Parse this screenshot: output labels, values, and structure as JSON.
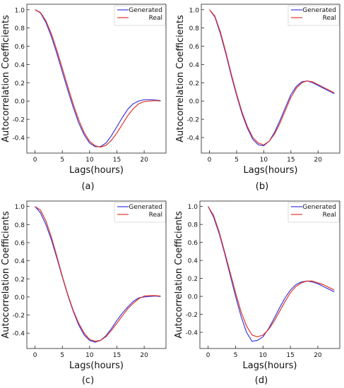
{
  "chart_data": [
    {
      "type": "line",
      "panel_label": "(a)",
      "xlabel": "Lags(hours)",
      "ylabel": "Autocorrelation Coefficients",
      "xlim": [
        -1.5,
        24
      ],
      "ylim": [
        -0.57,
        1.06
      ],
      "xticks": [
        0,
        5,
        10,
        15,
        20
      ],
      "yticks": [
        1.0,
        0.8,
        0.6,
        0.4,
        0.2,
        0.0,
        -0.2,
        -0.4
      ],
      "legend_position": "top-right",
      "x": [
        0,
        1,
        2,
        3,
        4,
        5,
        6,
        7,
        8,
        9,
        10,
        11,
        12,
        13,
        14,
        15,
        16,
        17,
        18,
        19,
        20,
        21,
        22,
        23
      ],
      "series": [
        {
          "name": "Generated",
          "color": "#3a3adf",
          "values": [
            1.0,
            0.965,
            0.86,
            0.705,
            0.52,
            0.32,
            0.12,
            -0.07,
            -0.24,
            -0.37,
            -0.46,
            -0.5,
            -0.5,
            -0.46,
            -0.38,
            -0.28,
            -0.18,
            -0.09,
            -0.03,
            0.0,
            0.015,
            0.015,
            0.01,
            0.005
          ]
        },
        {
          "name": "Real",
          "color": "#e0362a",
          "values": [
            1.0,
            0.97,
            0.88,
            0.735,
            0.555,
            0.36,
            0.16,
            -0.035,
            -0.205,
            -0.345,
            -0.44,
            -0.49,
            -0.505,
            -0.485,
            -0.43,
            -0.35,
            -0.255,
            -0.16,
            -0.085,
            -0.03,
            -0.005,
            0.0,
            0.005,
            0.0
          ]
        }
      ]
    },
    {
      "type": "line",
      "panel_label": "(b)",
      "xlabel": "Lags(hours)",
      "ylabel": "Autocorrelation Coefficients",
      "xlim": [
        -1.5,
        24
      ],
      "ylim": [
        -0.57,
        1.06
      ],
      "xticks": [
        0,
        5,
        10,
        15,
        20
      ],
      "yticks": [
        1.0,
        0.8,
        0.6,
        0.4,
        0.2,
        0.0,
        -0.2,
        -0.4
      ],
      "legend_position": "top-right",
      "x": [
        0,
        1,
        2,
        3,
        4,
        5,
        6,
        7,
        8,
        9,
        10,
        11,
        12,
        13,
        14,
        15,
        16,
        17,
        18,
        19,
        20,
        21,
        22,
        23
      ],
      "series": [
        {
          "name": "Generated",
          "color": "#3a3adf",
          "values": [
            1.0,
            0.92,
            0.74,
            0.52,
            0.28,
            0.06,
            -0.14,
            -0.3,
            -0.42,
            -0.48,
            -0.49,
            -0.44,
            -0.34,
            -0.21,
            -0.07,
            0.07,
            0.16,
            0.21,
            0.22,
            0.2,
            0.17,
            0.14,
            0.11,
            0.08
          ]
        },
        {
          "name": "Real",
          "color": "#e0362a",
          "values": [
            1.0,
            0.93,
            0.76,
            0.54,
            0.3,
            0.08,
            -0.12,
            -0.28,
            -0.4,
            -0.46,
            -0.48,
            -0.44,
            -0.36,
            -0.24,
            -0.1,
            0.04,
            0.14,
            0.2,
            0.22,
            0.21,
            0.18,
            0.15,
            0.12,
            0.09
          ]
        }
      ]
    },
    {
      "type": "line",
      "panel_label": "(c)",
      "xlabel": "Lags(hours)",
      "ylabel": "Autocorrelation Coefficients",
      "xlim": [
        -1.5,
        24
      ],
      "ylim": [
        -0.57,
        1.06
      ],
      "xticks": [
        0,
        5,
        10,
        15,
        20
      ],
      "yticks": [
        1.0,
        0.8,
        0.6,
        0.4,
        0.2,
        0.0,
        -0.2,
        -0.4
      ],
      "legend_position": "top-right",
      "x": [
        0,
        1,
        2,
        3,
        4,
        5,
        6,
        7,
        8,
        9,
        10,
        11,
        12,
        13,
        14,
        15,
        16,
        17,
        18,
        19,
        20,
        21,
        22,
        23
      ],
      "series": [
        {
          "name": "Generated",
          "color": "#3a3adf",
          "values": [
            1.0,
            0.93,
            0.8,
            0.63,
            0.43,
            0.22,
            0.02,
            -0.16,
            -0.31,
            -0.42,
            -0.48,
            -0.5,
            -0.48,
            -0.43,
            -0.35,
            -0.26,
            -0.18,
            -0.11,
            -0.05,
            -0.01,
            0.0,
            0.005,
            0.01,
            0.005
          ]
        },
        {
          "name": "Real",
          "color": "#e0362a",
          "values": [
            1.0,
            0.96,
            0.84,
            0.66,
            0.45,
            0.23,
            0.03,
            -0.15,
            -0.29,
            -0.4,
            -0.47,
            -0.49,
            -0.48,
            -0.44,
            -0.37,
            -0.29,
            -0.21,
            -0.13,
            -0.07,
            -0.02,
            0.01,
            0.015,
            0.015,
            0.01
          ]
        }
      ]
    },
    {
      "type": "line",
      "panel_label": "(d)",
      "xlabel": "Lags(hours)",
      "ylabel": "Autocorrelation Coefficients",
      "xlim": [
        -1.5,
        24
      ],
      "ylim": [
        -0.58,
        1.06
      ],
      "xticks": [
        0,
        5,
        10,
        15,
        20
      ],
      "yticks": [
        1.0,
        0.8,
        0.6,
        0.4,
        0.2,
        0.0,
        -0.2,
        -0.4
      ],
      "legend_position": "top-right",
      "x": [
        0,
        1,
        2,
        3,
        4,
        5,
        6,
        7,
        8,
        9,
        10,
        11,
        12,
        13,
        14,
        15,
        16,
        17,
        18,
        19,
        20,
        21,
        22,
        23
      ],
      "series": [
        {
          "name": "Generated",
          "color": "#3a3adf",
          "values": [
            1.0,
            0.88,
            0.7,
            0.48,
            0.24,
            0.0,
            -0.22,
            -0.4,
            -0.5,
            -0.49,
            -0.45,
            -0.36,
            -0.25,
            -0.13,
            -0.02,
            0.07,
            0.13,
            0.16,
            0.17,
            0.16,
            0.14,
            0.11,
            0.08,
            0.05
          ]
        },
        {
          "name": "Real",
          "color": "#e0362a",
          "values": [
            1.0,
            0.9,
            0.72,
            0.5,
            0.27,
            0.04,
            -0.17,
            -0.33,
            -0.43,
            -0.45,
            -0.43,
            -0.37,
            -0.28,
            -0.17,
            -0.06,
            0.04,
            0.11,
            0.15,
            0.17,
            0.17,
            0.15,
            0.13,
            0.1,
            0.07
          ]
        }
      ]
    }
  ]
}
